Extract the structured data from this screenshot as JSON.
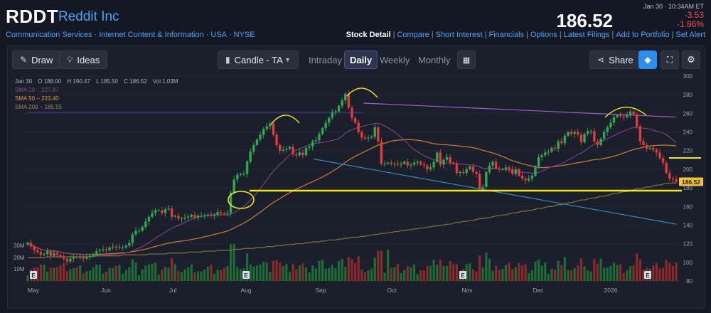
{
  "header": {
    "ticker": "RDDT",
    "company": "Reddit Inc",
    "breadcrumbs": [
      "Communication Services",
      "Internet Content & Information",
      "USA",
      "NYSE"
    ],
    "timestamp": "Jan 30 · 10:34AM ET",
    "price": "186.52",
    "change": "-3.53",
    "change_pct": "-1.86%",
    "links": [
      "Stock Detail",
      "Compare",
      "Short Interest",
      "Financials",
      "Options",
      "Latest Filings",
      "Add to Portfolio",
      "Set Alert"
    ]
  },
  "toolbar": {
    "draw": "Draw",
    "ideas": "Ideas",
    "chart_type": "Candle - TA",
    "tabs": [
      "Intraday",
      "Daily",
      "Weekly",
      "Monthly"
    ],
    "active_tab": "Daily",
    "share": "Share"
  },
  "legend": {
    "date": "Jan 30",
    "open": "O 188.00",
    "high": "H 190.47",
    "low": "L 185.50",
    "close": "C 186.52",
    "vol": "Vol 1.03M",
    "sma20": "SMA 20 − 227.87",
    "sma50": "SMA 50 − 223.40",
    "sma200": "SMA 200 − 185.55"
  },
  "colors": {
    "up": "#2fa84f",
    "down": "#e23b3b",
    "sma20": "#7b3f7e",
    "sma50": "#c07a2e",
    "sma200": "#7a6d42",
    "annotation_yellow": "#f5e61a",
    "accent": "#4ea3f5"
  },
  "chart_data": {
    "type": "candlestick",
    "ylim": [
      80,
      300
    ],
    "y_ticks": [
      "300",
      "280",
      "260",
      "240",
      "220",
      "200",
      "180",
      "160",
      "140",
      "120",
      "100",
      "80"
    ],
    "last_price_label": "186.52",
    "volume_ticks": [
      "30M",
      "20M",
      "10M"
    ],
    "x_ticks": [
      "May",
      "Jun",
      "Jul",
      "Aug",
      "Sep",
      "Oct",
      "Nov",
      "Dec",
      "2026"
    ],
    "earnings_markers": [
      "E",
      "E",
      "E",
      "E"
    ],
    "closes": [
      121,
      117,
      113,
      111,
      108,
      109,
      112,
      107,
      110,
      108,
      106,
      104,
      101,
      104,
      106,
      105,
      106,
      104,
      106,
      107,
      109,
      112,
      113,
      114,
      113,
      116,
      117,
      116,
      116,
      116,
      118,
      121,
      130,
      134,
      134,
      138,
      144,
      149,
      153,
      156,
      156,
      153,
      157,
      158,
      149,
      150,
      147,
      147,
      148,
      149,
      151,
      148,
      150,
      150,
      150,
      151,
      150,
      151,
      154,
      153,
      152,
      153,
      175,
      189,
      194,
      195,
      195,
      208,
      219,
      226,
      232,
      237,
      243,
      246,
      249,
      237,
      226,
      220,
      221,
      222,
      224,
      216,
      215,
      218,
      215,
      223,
      224,
      230,
      231,
      238,
      244,
      250,
      255,
      261,
      262,
      268,
      274,
      281,
      266,
      255,
      250,
      240,
      234,
      233,
      234,
      235,
      245,
      230,
      206,
      206,
      207,
      206,
      206,
      205,
      206,
      208,
      204,
      205,
      207,
      208,
      205,
      204,
      200,
      202,
      208,
      218,
      205,
      210,
      213,
      207,
      206,
      196,
      197,
      196,
      200,
      203,
      197,
      195,
      179,
      181,
      197,
      204,
      208,
      201,
      200,
      200,
      202,
      200,
      195,
      200,
      193,
      190,
      188,
      190,
      193,
      203,
      213,
      215,
      218,
      219,
      223,
      222,
      230,
      228,
      236,
      240,
      238,
      240,
      237,
      229,
      238,
      241,
      241,
      230,
      226,
      233,
      240,
      245,
      250,
      256,
      258,
      257,
      256,
      258,
      262,
      259,
      246,
      230,
      226,
      222,
      223,
      221,
      218,
      212,
      207,
      196,
      190,
      189,
      186.52
    ],
    "sma200": [
      105,
      105,
      105,
      105,
      105,
      105,
      106,
      106,
      106,
      106,
      106,
      106,
      106,
      106,
      106,
      106,
      106,
      106,
      106,
      106,
      106,
      107,
      107,
      107,
      107,
      107,
      107,
      107,
      107,
      108,
      108,
      108,
      108,
      108,
      108,
      108,
      108,
      109,
      109,
      109,
      109,
      109,
      109,
      110,
      110,
      110,
      110,
      110,
      110,
      111,
      111,
      111,
      111,
      111,
      112,
      112,
      112,
      112,
      113,
      113,
      113,
      113,
      113,
      114,
      114,
      114,
      115,
      115,
      115,
      115,
      116,
      116,
      116,
      117,
      117,
      117,
      118,
      118,
      118,
      119,
      119,
      119,
      120,
      120,
      120,
      121,
      121,
      122,
      122,
      122,
      123,
      123,
      124,
      124,
      124,
      125,
      125,
      126,
      126,
      127,
      127,
      127,
      128,
      128,
      129,
      129,
      130,
      130,
      131,
      131,
      132,
      132,
      133,
      133,
      134,
      134,
      135,
      135,
      136,
      136,
      137,
      137,
      138,
      138,
      139,
      139,
      140,
      140,
      141,
      141,
      142,
      143,
      143,
      144,
      144,
      145,
      145,
      146,
      147,
      147,
      148,
      148,
      149,
      150,
      150,
      151,
      151,
      152,
      153,
      153,
      154,
      155,
      155,
      156,
      156,
      157,
      158,
      158,
      159,
      160,
      160,
      161,
      162,
      162,
      163,
      164,
      164,
      165,
      166,
      167,
      167,
      168,
      169,
      169,
      170,
      171,
      171,
      172,
      173,
      174,
      174,
      175,
      176,
      176,
      177,
      178,
      179,
      179,
      180,
      181,
      181,
      182,
      183,
      183,
      184,
      185,
      185,
      185,
      185.55
    ]
  }
}
